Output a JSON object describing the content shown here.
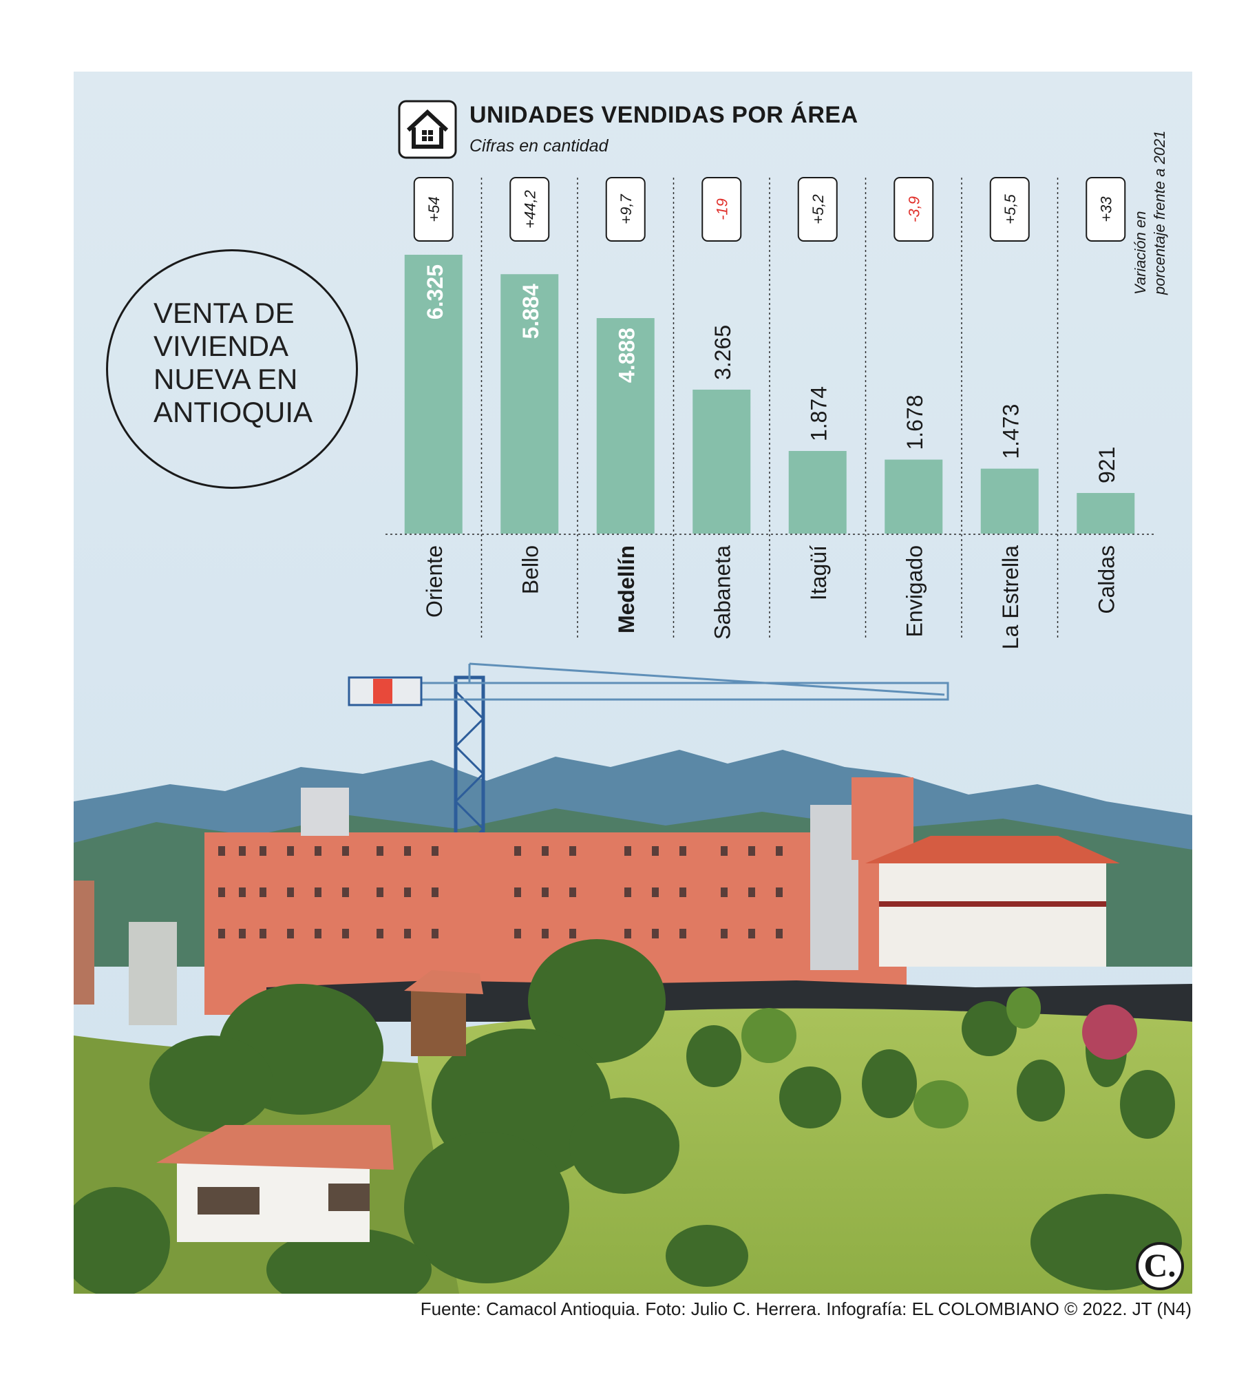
{
  "badge": {
    "text": "VENTA DE VIVIENDA NUEVA EN ANTIOQUIA"
  },
  "header": {
    "icon": "house-icon",
    "title": "UNIDADES VENDIDAS POR ÁREA",
    "subtitle": "Cifras en cantidad"
  },
  "variation_note": {
    "line1": "Variación en",
    "line2": "porcentaje frente a 2021"
  },
  "chart_data": {
    "type": "bar",
    "title": "UNIDADES VENDIDAS POR ÁREA",
    "subtitle": "Cifras en cantidad",
    "categories": [
      "Oriente",
      "Bello",
      "Medellín",
      "Sabaneta",
      "Itagüí",
      "Envigado",
      "La Estrella",
      "Caldas"
    ],
    "values": [
      6325,
      5884,
      4888,
      3265,
      1874,
      1678,
      1473,
      921
    ],
    "value_labels": [
      "6.325",
      "5.884",
      "4.888",
      "3.265",
      "1.874",
      "1.678",
      "1.473",
      "921"
    ],
    "variation_pct_vs_2021": [
      "+54",
      "+44,2",
      "+9,7",
      "-19",
      "+5,2",
      "-3,9",
      "+5,5",
      "+33"
    ],
    "highlighted_category": "Medellín",
    "ylim": [
      0,
      6325
    ],
    "bar_color": "#86bfaa",
    "negative_color": "#e0302b",
    "grid": false,
    "legend": false
  },
  "logo": {
    "letter": "C."
  },
  "credits": "Fuente: Camacol Antioquia. Foto: Julio C. Herrera. Infografía: EL COLOMBIANO © 2022. JT (N4)"
}
